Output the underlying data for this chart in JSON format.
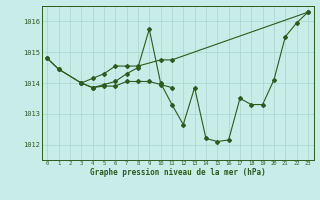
{
  "bg_color": "#c8ece8",
  "grid_color": "#a8d4ce",
  "line_color": "#2d5a1e",
  "ylim": [
    1011.5,
    1016.5
  ],
  "yticks": [
    1012,
    1013,
    1014,
    1015,
    1016
  ],
  "xticks": [
    0,
    1,
    2,
    3,
    4,
    5,
    6,
    7,
    8,
    9,
    10,
    11,
    12,
    13,
    14,
    15,
    16,
    17,
    18,
    19,
    20,
    21,
    22,
    23
  ],
  "xlabel": "Graphe pression niveau de la mer (hPa)",
  "line1_x": [
    0,
    1,
    3,
    4,
    5,
    6,
    7,
    8,
    10,
    11,
    23
  ],
  "line1_y": [
    1014.8,
    1014.45,
    1014.0,
    1014.15,
    1014.3,
    1014.55,
    1014.55,
    1014.55,
    1014.75,
    1014.75,
    1016.3
  ],
  "line2_x": [
    0,
    1,
    3,
    4,
    5,
    6,
    7,
    8,
    9,
    10,
    11,
    12,
    13,
    14,
    15,
    16,
    17,
    18,
    19,
    20,
    21,
    22,
    23
  ],
  "line2_y": [
    1014.8,
    1014.45,
    1014.0,
    1013.85,
    1013.95,
    1014.05,
    1014.3,
    1014.5,
    1015.75,
    1014.0,
    1013.3,
    1012.65,
    1013.85,
    1012.2,
    1012.1,
    1012.15,
    1013.5,
    1013.3,
    1013.3,
    1014.1,
    1015.5,
    1015.95,
    1016.3
  ],
  "line3_x": [
    3,
    4,
    5,
    6,
    7,
    8,
    9,
    10,
    11
  ],
  "line3_y": [
    1014.0,
    1013.85,
    1013.9,
    1013.9,
    1014.05,
    1014.05,
    1014.05,
    1013.95,
    1013.85
  ]
}
